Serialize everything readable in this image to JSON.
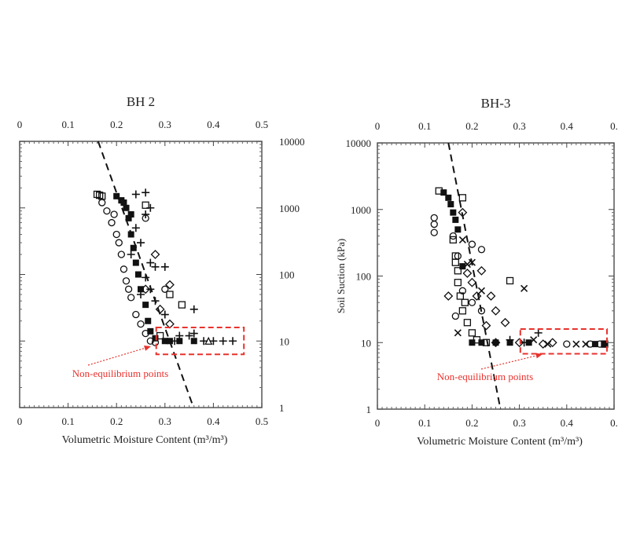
{
  "chart_data": [
    {
      "type": "scatter",
      "title": "BH 2",
      "xlabel": "Volumetric Moisture Content (m³/m³)",
      "ylabel": "",
      "xlim": [
        0,
        0.5
      ],
      "ylim": [
        1,
        10000
      ],
      "yscale": "log",
      "xticks": [
        "0",
        "0.1",
        "0.2",
        "0.3",
        "0.4",
        "0.5"
      ],
      "yticks": [
        "1",
        "10",
        "100",
        "1000",
        "10000"
      ],
      "yaxis_side": "right",
      "dashed_line": [
        [
          0.162,
          10000
        ],
        [
          0.359,
          1
        ]
      ],
      "highlight_box": {
        "x": [
          0.282,
          0.463
        ],
        "y": [
          6.3,
          16
        ],
        "color": "#e8322d"
      },
      "annotation": {
        "text": "Non-equilibrium points",
        "color": "#e8322d"
      },
      "series": [
        {
          "name": "squares",
          "marker": "square",
          "points": [
            [
              0.16,
              1600
            ],
            [
              0.165,
              1550
            ],
            [
              0.17,
              1500
            ],
            [
              0.26,
              1100
            ],
            [
              0.31,
              50
            ],
            [
              0.335,
              35
            ],
            [
              0.29,
              12
            ]
          ]
        },
        {
          "name": "circles",
          "marker": "circle",
          "points": [
            [
              0.18,
              900
            ],
            [
              0.17,
              1200
            ],
            [
              0.19,
              600
            ],
            [
              0.2,
              400
            ],
            [
              0.21,
              200
            ],
            [
              0.215,
              120
            ],
            [
              0.22,
              80
            ],
            [
              0.23,
              45
            ],
            [
              0.24,
              25
            ],
            [
              0.25,
              18
            ],
            [
              0.26,
              13
            ],
            [
              0.27,
              10
            ],
            [
              0.28,
              9.5
            ],
            [
              0.3,
              60
            ],
            [
              0.26,
              700
            ],
            [
              0.195,
              800
            ],
            [
              0.205,
              300
            ],
            [
              0.225,
              60
            ]
          ]
        },
        {
          "name": "plus",
          "marker": "plus",
          "points": [
            [
              0.24,
              1600
            ],
            [
              0.26,
              1700
            ],
            [
              0.27,
              1000
            ],
            [
              0.26,
              800
            ],
            [
              0.24,
              500
            ],
            [
              0.25,
              300
            ],
            [
              0.27,
              150
            ],
            [
              0.28,
              130
            ],
            [
              0.3,
              130
            ],
            [
              0.26,
              90
            ],
            [
              0.28,
              40
            ],
            [
              0.3,
              25
            ],
            [
              0.36,
              30
            ],
            [
              0.33,
              12
            ],
            [
              0.35,
              12
            ],
            [
              0.36,
              13
            ],
            [
              0.38,
              10
            ],
            [
              0.4,
              10
            ],
            [
              0.42,
              10
            ],
            [
              0.44,
              10
            ],
            [
              0.32,
              10
            ],
            [
              0.25,
              50
            ],
            [
              0.23,
              200
            ],
            [
              0.27,
              60
            ]
          ]
        },
        {
          "name": "filled",
          "marker": "filled",
          "points": [
            [
              0.2,
              1500
            ],
            [
              0.21,
              1300
            ],
            [
              0.22,
              1000
            ],
            [
              0.225,
              700
            ],
            [
              0.23,
              400
            ],
            [
              0.235,
              250
            ],
            [
              0.24,
              150
            ],
            [
              0.245,
              100
            ],
            [
              0.25,
              60
            ],
            [
              0.26,
              35
            ],
            [
              0.265,
              20
            ],
            [
              0.27,
              14
            ],
            [
              0.28,
              11
            ],
            [
              0.3,
              10
            ],
            [
              0.31,
              10
            ],
            [
              0.33,
              10
            ],
            [
              0.36,
              10
            ],
            [
              0.215,
              1200
            ],
            [
              0.23,
              800
            ]
          ]
        },
        {
          "name": "diamonds",
          "marker": "diamond",
          "points": [
            [
              0.31,
              70
            ],
            [
              0.29,
              30
            ],
            [
              0.31,
              18
            ],
            [
              0.28,
              200
            ],
            [
              0.26,
              60
            ]
          ]
        },
        {
          "name": "triangles",
          "marker": "triangle",
          "points": [
            [
              0.39,
              10
            ]
          ]
        }
      ]
    },
    {
      "type": "scatter",
      "title": "BH-3",
      "xlabel": "Volumetric Moisture Content (m³/m³)",
      "ylabel": "Soil Suction (kPa)",
      "xlim": [
        0,
        0.5
      ],
      "ylim": [
        1,
        10000
      ],
      "yscale": "log",
      "xticks": [
        "0",
        "0.1",
        "0.2",
        "0.3",
        "0.4",
        "0."
      ],
      "yticks": [
        "1",
        "10",
        "100",
        "1000",
        "10000"
      ],
      "yaxis_side": "left",
      "dashed_line": [
        [
          0.15,
          10000
        ],
        [
          0.26,
          1
        ]
      ],
      "highlight_box": {
        "x": [
          0.302,
          0.485
        ],
        "y": [
          6.8,
          16
        ],
        "color": "#e8322d"
      },
      "annotation": {
        "text": "Non-equilibrium points",
        "color": "#e8322d"
      },
      "series": [
        {
          "name": "circles",
          "marker": "circle",
          "points": [
            [
              0.12,
              750
            ],
            [
              0.12,
              600
            ],
            [
              0.12,
              450
            ],
            [
              0.2,
              300
            ],
            [
              0.22,
              250
            ],
            [
              0.16,
              400
            ],
            [
              0.17,
              200
            ],
            [
              0.18,
              60
            ],
            [
              0.2,
              40
            ],
            [
              0.22,
              30
            ],
            [
              0.4,
              9.5
            ],
            [
              0.45,
              9.5
            ],
            [
              0.47,
              9.5
            ],
            [
              0.165,
              25
            ]
          ]
        },
        {
          "name": "squares",
          "marker": "square",
          "points": [
            [
              0.13,
              1900
            ],
            [
              0.18,
              1500
            ],
            [
              0.28,
              85
            ],
            [
              0.16,
              350
            ],
            [
              0.165,
              200
            ],
            [
              0.17,
              120
            ],
            [
              0.17,
              80
            ],
            [
              0.175,
              50
            ],
            [
              0.18,
              30
            ],
            [
              0.19,
              20
            ],
            [
              0.2,
              14
            ],
            [
              0.21,
              11
            ],
            [
              0.23,
              10
            ],
            [
              0.48,
              9.5
            ],
            [
              0.165,
              160
            ],
            [
              0.185,
              40
            ]
          ]
        },
        {
          "name": "diamonds",
          "marker": "diamond",
          "points": [
            [
              0.18,
              900
            ],
            [
              0.22,
              120
            ],
            [
              0.24,
              50
            ],
            [
              0.25,
              30
            ],
            [
              0.27,
              20
            ],
            [
              0.2,
              80
            ],
            [
              0.21,
              50
            ],
            [
              0.23,
              18
            ],
            [
              0.15,
              50
            ],
            [
              0.35,
              9.5
            ],
            [
              0.37,
              10
            ],
            [
              0.25,
              10
            ],
            [
              0.3,
              10
            ],
            [
              0.19,
              110
            ]
          ]
        },
        {
          "name": "crosses",
          "marker": "cross",
          "points": [
            [
              0.31,
              65
            ],
            [
              0.18,
              350
            ],
            [
              0.2,
              160
            ],
            [
              0.17,
              14
            ],
            [
              0.19,
              150
            ],
            [
              0.22,
              60
            ],
            [
              0.42,
              9.5
            ],
            [
              0.44,
              9.5
            ],
            [
              0.36,
              9.5
            ],
            [
              0.33,
              11
            ]
          ]
        },
        {
          "name": "filled",
          "marker": "filled",
          "points": [
            [
              0.14,
              1800
            ],
            [
              0.15,
              1500
            ],
            [
              0.155,
              1200
            ],
            [
              0.16,
              900
            ],
            [
              0.165,
              700
            ],
            [
              0.17,
              500
            ],
            [
              0.18,
              140
            ],
            [
              0.2,
              10
            ],
            [
              0.22,
              10
            ],
            [
              0.25,
              10
            ],
            [
              0.28,
              10
            ],
            [
              0.32,
              10
            ],
            [
              0.46,
              9.5
            ],
            [
              0.48,
              9.5
            ]
          ]
        },
        {
          "name": "plus",
          "marker": "plus",
          "points": [
            [
              0.34,
              14
            ],
            [
              0.28,
              11
            ],
            [
              0.31,
              10
            ]
          ]
        }
      ]
    }
  ]
}
